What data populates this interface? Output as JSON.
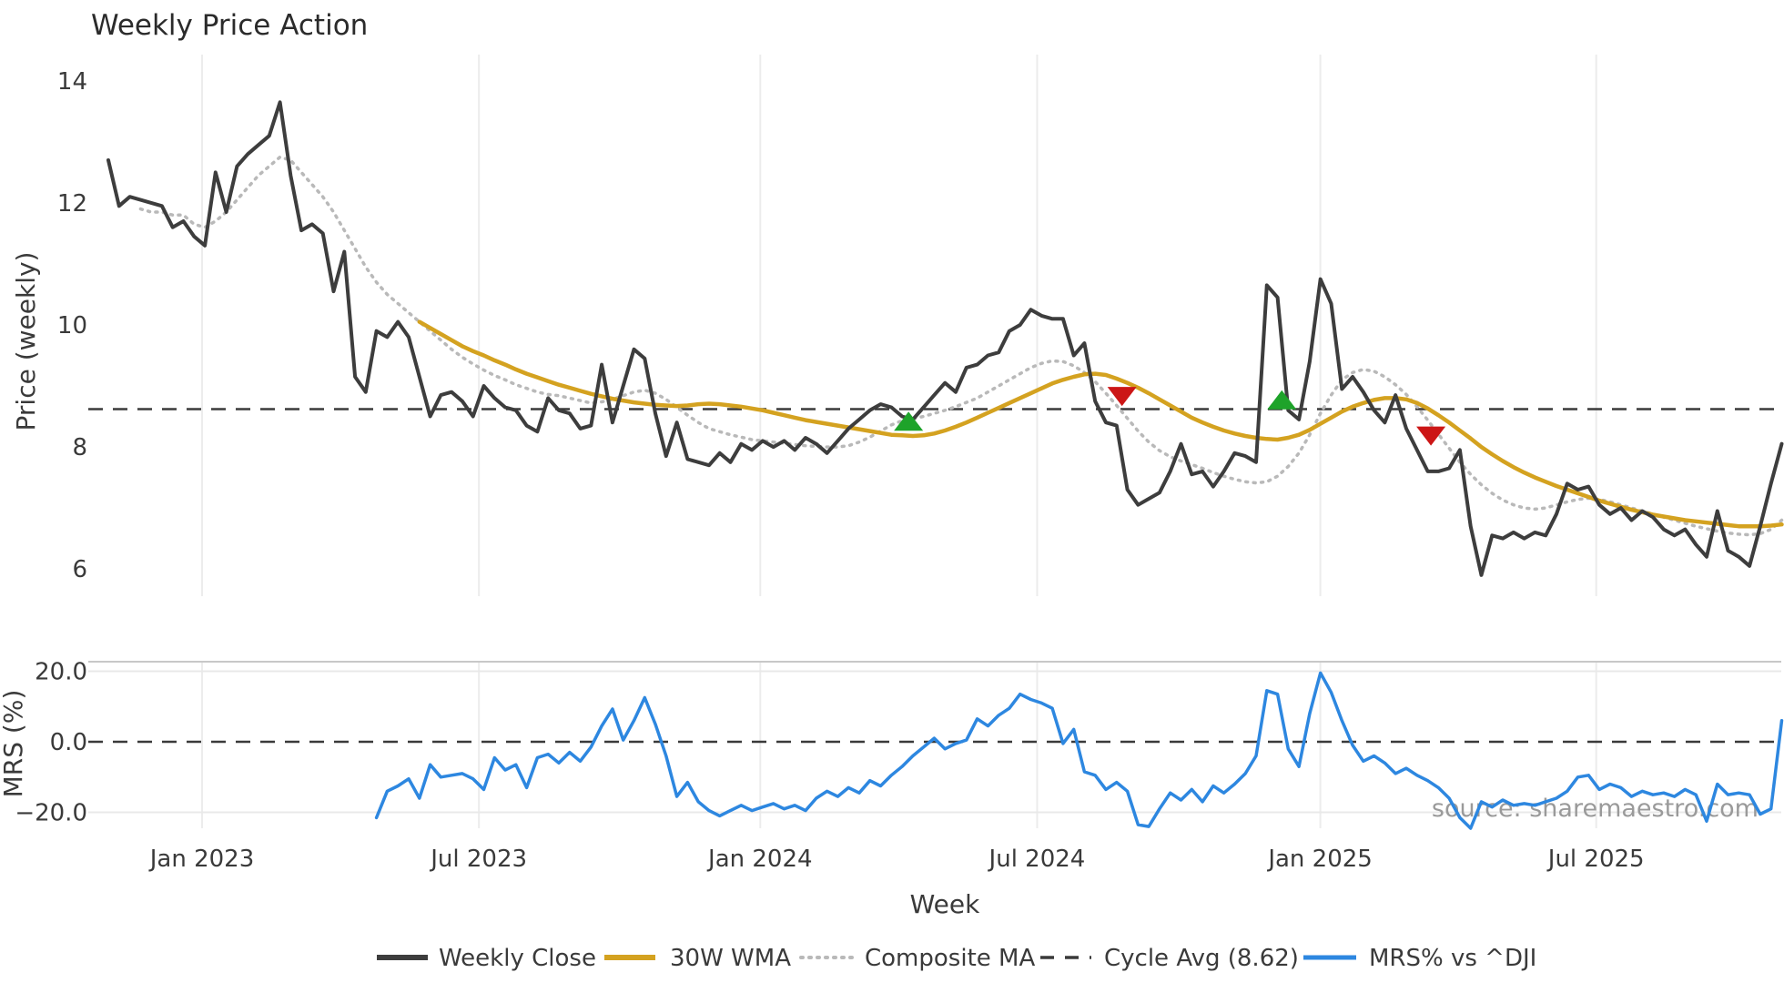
{
  "title": "Weekly Price Action",
  "source_note": "source: sharemaestro.com",
  "colors": {
    "price": "#3d3d3d",
    "wma": "#d4a220",
    "composite": "#b9b9b9",
    "cycle": "#3a3a3a",
    "mrs": "#2d87e0",
    "buy": "#1ea32a",
    "sell": "#cc1616",
    "grid": "#ececec",
    "mrs_grid": "#e9e9e9",
    "mrs_spine": "#c8c8c8",
    "text": "#3a3a3a",
    "source": "#9a9a9a"
  },
  "legend": [
    {
      "label": "Weekly Close",
      "style": "solid-dark"
    },
    {
      "label": "30W WMA",
      "style": "solid-gold"
    },
    {
      "label": "Composite MA",
      "style": "dotted-gray"
    },
    {
      "label": "Cycle Avg (8.62)",
      "style": "dashed-dark"
    },
    {
      "label": "MRS% vs ^DJI",
      "style": "solid-blue"
    }
  ],
  "chart_data": [
    {
      "type": "line",
      "panel": "price",
      "title": "Weekly Price Action",
      "ylabel": "Price (weekly)",
      "yticks": [
        14,
        12,
        10,
        8,
        6
      ],
      "ytick_labels": [
        "14",
        "12",
        "10",
        "8",
        "6"
      ],
      "ylim": [
        5.48,
        14.43
      ],
      "grid": "vertical-only",
      "xticks": {
        "labels": [
          "Jan 2023",
          "Jul 2023",
          "Jan 2024",
          "Jul 2024",
          "Jan 2025",
          "Jul 2025"
        ],
        "weeks": [
          8.74,
          34.55,
          60.78,
          86.59,
          112.99,
          138.71
        ]
      },
      "series": [
        {
          "name": "Weekly Close",
          "color_key": "price",
          "style": "solid",
          "width": 4,
          "start_week": 0,
          "values": [
            12.7,
            11.95,
            12.1,
            12.05,
            12.0,
            11.95,
            11.6,
            11.7,
            11.45,
            11.3,
            12.5,
            11.85,
            12.6,
            12.8,
            12.95,
            13.1,
            13.65,
            12.45,
            11.55,
            11.65,
            11.5,
            10.55,
            11.2,
            9.15,
            8.9,
            9.9,
            9.8,
            10.05,
            9.8,
            9.15,
            8.5,
            8.85,
            8.9,
            8.75,
            8.5,
            9.0,
            8.8,
            8.65,
            8.6,
            8.35,
            8.25,
            8.8,
            8.6,
            8.55,
            8.3,
            8.35,
            9.35,
            8.4,
            9.0,
            9.6,
            9.45,
            8.55,
            7.85,
            8.4,
            7.8,
            7.75,
            7.7,
            7.9,
            7.75,
            8.05,
            7.95,
            8.1,
            8.0,
            8.1,
            7.95,
            8.15,
            8.05,
            7.9,
            8.1,
            8.3,
            8.45,
            8.6,
            8.7,
            8.65,
            8.5,
            8.45,
            8.65,
            8.85,
            9.05,
            8.9,
            9.3,
            9.35,
            9.5,
            9.55,
            9.9,
            10.0,
            10.25,
            10.15,
            10.1,
            10.1,
            9.5,
            9.7,
            8.75,
            8.4,
            8.35,
            7.3,
            7.05,
            7.15,
            7.25,
            7.6,
            8.05,
            7.55,
            7.6,
            7.35,
            7.6,
            7.9,
            7.85,
            7.75,
            10.65,
            10.45,
            8.6,
            8.45,
            9.4,
            10.75,
            10.35,
            8.95,
            9.15,
            8.9,
            8.6,
            8.4,
            8.85,
            8.3,
            7.95,
            7.6,
            7.6,
            7.65,
            7.95,
            6.7,
            5.9,
            6.55,
            6.5,
            6.6,
            6.5,
            6.6,
            6.55,
            6.9,
            7.4,
            7.3,
            7.35,
            7.05,
            6.9,
            7.0,
            6.8,
            6.95,
            6.85,
            6.65,
            6.55,
            6.65,
            6.4,
            6.2,
            6.95,
            6.3,
            6.2,
            6.05,
            6.7,
            7.4,
            8.05
          ]
        },
        {
          "name": "30W WMA",
          "color_key": "wma",
          "style": "solid",
          "width": 4.5,
          "start_week": 29,
          "values": [
            10.05,
            9.95,
            9.85,
            9.75,
            9.65,
            9.57,
            9.5,
            9.42,
            9.35,
            9.27,
            9.2,
            9.14,
            9.08,
            9.02,
            8.97,
            8.92,
            8.87,
            8.83,
            8.79,
            8.76,
            8.73,
            8.71,
            8.69,
            8.68,
            8.67,
            8.68,
            8.7,
            8.71,
            8.7,
            8.68,
            8.66,
            8.63,
            8.6,
            8.56,
            8.52,
            8.48,
            8.44,
            8.41,
            8.38,
            8.35,
            8.32,
            8.29,
            8.26,
            8.23,
            8.2,
            8.19,
            8.18,
            8.19,
            8.22,
            8.27,
            8.33,
            8.4,
            8.48,
            8.56,
            8.64,
            8.72,
            8.8,
            8.88,
            8.96,
            9.04,
            9.1,
            9.15,
            9.19,
            9.2,
            9.18,
            9.12,
            9.05,
            8.97,
            8.88,
            8.78,
            8.68,
            8.58,
            8.48,
            8.4,
            8.33,
            8.27,
            8.22,
            8.18,
            8.15,
            8.13,
            8.12,
            8.15,
            8.2,
            8.28,
            8.38,
            8.48,
            8.58,
            8.66,
            8.72,
            8.77,
            8.8,
            8.8,
            8.78,
            8.72,
            8.63,
            8.52,
            8.4,
            8.27,
            8.14,
            8.0,
            7.88,
            7.77,
            7.67,
            7.58,
            7.5,
            7.43,
            7.36,
            7.3,
            7.24,
            7.18,
            7.12,
            7.07,
            7.02,
            6.97,
            6.93,
            6.89,
            6.86,
            6.83,
            6.8,
            6.78,
            6.76,
            6.74,
            6.72,
            6.7,
            6.7,
            6.7,
            6.71,
            6.73
          ]
        },
        {
          "name": "Composite MA",
          "color_key": "composite",
          "style": "dotted",
          "width": 3.5,
          "start_week": 3,
          "values": [
            11.9,
            11.85,
            11.85,
            11.8,
            11.8,
            11.65,
            11.6,
            11.7,
            11.85,
            12.05,
            12.25,
            12.45,
            12.6,
            12.75,
            12.7,
            12.5,
            12.3,
            12.1,
            11.85,
            11.55,
            11.25,
            10.95,
            10.7,
            10.5,
            10.35,
            10.2,
            10.05,
            9.9,
            9.75,
            9.6,
            9.47,
            9.36,
            9.26,
            9.17,
            9.1,
            9.02,
            8.96,
            8.9,
            8.86,
            8.84,
            8.8,
            8.76,
            8.72,
            8.74,
            8.78,
            8.84,
            8.9,
            8.93,
            8.88,
            8.78,
            8.65,
            8.52,
            8.4,
            8.3,
            8.25,
            8.2,
            8.16,
            8.12,
            8.1,
            8.08,
            8.06,
            8.04,
            8.02,
            8.01,
            8.0,
            8.0,
            8.02,
            8.08,
            8.16,
            8.26,
            8.36,
            8.43,
            8.46,
            8.5,
            8.55,
            8.6,
            8.66,
            8.73,
            8.8,
            8.9,
            9.0,
            9.1,
            9.2,
            9.3,
            9.37,
            9.41,
            9.4,
            9.33,
            9.22,
            9.07,
            8.88,
            8.68,
            8.47,
            8.26,
            8.08,
            7.94,
            7.84,
            7.77,
            7.71,
            7.65,
            7.58,
            7.52,
            7.47,
            7.43,
            7.41,
            7.43,
            7.52,
            7.68,
            7.9,
            8.2,
            8.55,
            8.85,
            9.1,
            9.22,
            9.27,
            9.24,
            9.15,
            9.02,
            8.86,
            8.66,
            8.44,
            8.21,
            7.98,
            7.75,
            7.55,
            7.38,
            7.24,
            7.13,
            7.05,
            7.0,
            6.98,
            7.0,
            7.05,
            7.1,
            7.14,
            7.16,
            7.14,
            7.1,
            7.05,
            7.0,
            6.95,
            6.9,
            6.85,
            6.8,
            6.75,
            6.7,
            6.66,
            6.62,
            6.59,
            6.57,
            6.56,
            6.58,
            6.65,
            6.8
          ]
        },
        {
          "name": "Cycle Avg (8.62)",
          "color_key": "cycle",
          "style": "dashed-hline",
          "width": 2.6,
          "hline_value": 8.62
        }
      ],
      "markers": [
        {
          "kind": "buy",
          "week": 74.6,
          "value": 8.4
        },
        {
          "kind": "sell",
          "week": 94.5,
          "value": 8.85
        },
        {
          "kind": "buy",
          "week": 109.4,
          "value": 8.75
        },
        {
          "kind": "sell",
          "week": 123.3,
          "value": 8.2
        }
      ]
    },
    {
      "type": "line",
      "panel": "mrs",
      "ylabel": "MRS (%)",
      "xlabel": "Week",
      "yticks": [
        20.0,
        0.0,
        -20.0
      ],
      "ytick_labels": [
        "20.0",
        "0.0",
        "−20.0"
      ],
      "ylim": [
        -24.5,
        22.7
      ],
      "zero_line": "dashed",
      "series": [
        {
          "name": "MRS% vs ^DJI",
          "color_key": "mrs",
          "style": "solid",
          "width": 3.5,
          "start_week": 25,
          "values": [
            -21.5,
            -14,
            -12.5,
            -10.5,
            -16,
            -6.5,
            -10,
            -9.5,
            -9,
            -10.5,
            -13.5,
            -4.5,
            -8,
            -6.5,
            -13,
            -4.5,
            -3.5,
            -6,
            -3,
            -5.5,
            -1.5,
            4.5,
            9.3,
            0.5,
            6,
            12.5,
            5,
            -4,
            -15.5,
            -11.5,
            -17,
            -19.5,
            -21,
            -19.5,
            -18,
            -19.5,
            -18.5,
            -17.5,
            -19,
            -18,
            -19.5,
            -16,
            -14,
            -15.5,
            -13,
            -14.5,
            -11,
            -12.5,
            -9.5,
            -7,
            -4,
            -1.5,
            1,
            -2,
            -0.5,
            0.5,
            6.5,
            4.5,
            7.5,
            9.5,
            13.5,
            12,
            11,
            9.5,
            -0.5,
            3.5,
            -8.5,
            -9.5,
            -13.5,
            -11.5,
            -14,
            -23.5,
            -24,
            -19,
            -14.5,
            -16.5,
            -13.5,
            -17,
            -12.5,
            -14.5,
            -12,
            -9,
            -4,
            14.5,
            13.5,
            -2,
            -7,
            8,
            19.5,
            14,
            6,
            -1,
            -5.5,
            -4,
            -6,
            -9,
            -7.5,
            -9.5,
            -11,
            -13,
            -16,
            -21.5,
            -24.5,
            -17,
            -18.5,
            -16.5,
            -18,
            -17.5,
            -18,
            -17,
            -16,
            -14,
            -10,
            -9.5,
            -13.5,
            -12,
            -13,
            -15.5,
            -14,
            -15,
            -14.5,
            -15.5,
            -13.5,
            -15,
            -22.5,
            -12,
            -15,
            -14.5,
            -15,
            -20.5,
            -19,
            6
          ]
        }
      ]
    }
  ]
}
